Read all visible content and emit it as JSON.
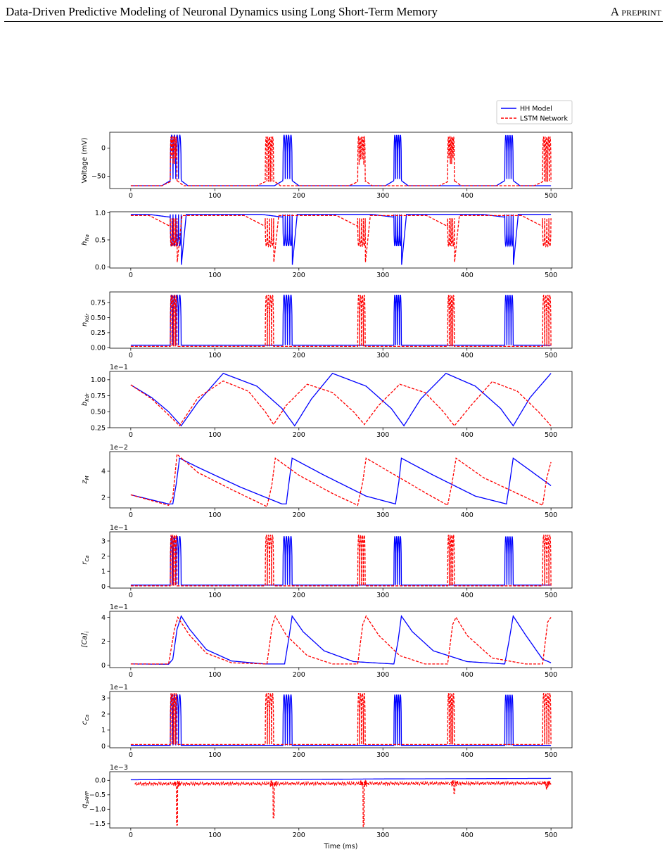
{
  "header": {
    "title": "Data-Driven Predictive Modeling of Neuronal Dynamics using Long Short-Term Memory",
    "tag": "A preprint"
  },
  "colors": {
    "hh": "#0000ff",
    "lstm": "#ff0000",
    "axis": "#000000"
  },
  "chart_data": {
    "type": "line",
    "legend": {
      "placement": "top-right",
      "entries": [
        {
          "name": "HH Model",
          "style": "solid",
          "color": "#0000ff"
        },
        {
          "name": "LSTM Network",
          "style": "dashed",
          "color": "#ff0000"
        }
      ]
    },
    "xlabel": "Time (ms)",
    "xlim": [
      -25,
      525
    ],
    "xticks": [
      0,
      100,
      200,
      300,
      400,
      500
    ],
    "grid": false,
    "panels": [
      {
        "id": "voltage",
        "ylabel": "Voltage (mV)",
        "sub": "",
        "offset": "",
        "ylim": [
          -72,
          28
        ],
        "yticks": [
          -50,
          0
        ],
        "yticklabels": [
          "−50",
          "0"
        ],
        "rest": -67,
        "profile": "voltage",
        "peak": 23,
        "hh": {
          "start": -67,
          "end": -67,
          "rise": [
            -67,
            -58
          ],
          "bursts": [
            [
              47,
              60
            ],
            [
              181,
              192
            ],
            [
              313,
              322
            ],
            [
              445,
              455
            ]
          ],
          "spike_top": 23,
          "spike_bottom": -55,
          "spikes": 4
        },
        "lstm": {
          "start": -67,
          "end": -67,
          "rise": [
            -67,
            -60
          ],
          "bursts": [
            [
              47,
              55
            ],
            [
              160,
              170
            ],
            [
              270,
              279
            ],
            [
              377,
              385
            ],
            [
              490,
              500
            ]
          ],
          "spike_top": 20,
          "spike_bottom": -60,
          "spikes": 5
        }
      },
      {
        "id": "h_na",
        "ylabel": "h",
        "sub": "Na",
        "offset": "",
        "ylim": [
          -0.02,
          1.02
        ],
        "yticks": [
          0,
          0.5,
          1.0
        ],
        "yticklabels": [
          "0.0",
          "0.5",
          "1.0"
        ],
        "profile": "inverse",
        "peak": 0.97,
        "hh": {
          "bursts": [
            [
              47,
              60
            ],
            [
              181,
              192
            ],
            [
              313,
              322
            ],
            [
              445,
              455
            ]
          ],
          "low": 0.0,
          "high": 0.97,
          "dip": 0.92
        },
        "lstm": {
          "bursts": [
            [
              47,
              55
            ],
            [
              160,
              170
            ],
            [
              270,
              279
            ],
            [
              377,
              385
            ],
            [
              490,
              500
            ]
          ],
          "low": 0.05,
          "high": 0.95,
          "dip": 0.75
        }
      },
      {
        "id": "n_kdr",
        "ylabel": "n",
        "sub": "Kdr",
        "offset": "",
        "ylim": [
          -0.01,
          0.93
        ],
        "yticks": [
          0,
          0.25,
          0.5,
          0.75
        ],
        "yticklabels": [
          "0.00",
          "0.25",
          "0.50",
          "0.75"
        ],
        "profile": "spike",
        "base": 0.04,
        "hh": {
          "bursts": [
            [
              47,
              60
            ],
            [
              181,
              192
            ],
            [
              313,
              322
            ],
            [
              445,
              455
            ]
          ],
          "top": 0.88,
          "base": 0.04
        },
        "lstm": {
          "bursts": [
            [
              47,
              55
            ],
            [
              160,
              170
            ],
            [
              270,
              279
            ],
            [
              377,
              385
            ],
            [
              490,
              500
            ]
          ],
          "top": 0.88,
          "base": 0.02
        }
      },
      {
        "id": "b_kdr",
        "ylabel": "b",
        "sub": "Kdr",
        "offset": "1e−1",
        "ylim": [
          0.25,
          1.13
        ],
        "yticks": [
          0.25,
          0.5,
          0.75,
          1.0
        ],
        "yticklabels": [
          "0.25",
          "0.50",
          "0.75",
          "1.00"
        ],
        "profile": "slow",
        "hh": {
          "points": [
            [
              0,
              0.92
            ],
            [
              25,
              0.72
            ],
            [
              45,
              0.5
            ],
            [
              60,
              0.28
            ],
            [
              80,
              0.65
            ],
            [
              110,
              1.1
            ],
            [
              150,
              0.9
            ],
            [
              180,
              0.55
            ],
            [
              195,
              0.28
            ],
            [
              215,
              0.7
            ],
            [
              240,
              1.1
            ],
            [
              280,
              0.9
            ],
            [
              310,
              0.55
            ],
            [
              325,
              0.28
            ],
            [
              345,
              0.7
            ],
            [
              375,
              1.1
            ],
            [
              410,
              0.9
            ],
            [
              440,
              0.55
            ],
            [
              455,
              0.28
            ],
            [
              475,
              0.72
            ],
            [
              500,
              1.1
            ]
          ]
        },
        "lstm": {
          "points": [
            [
              0,
              0.92
            ],
            [
              25,
              0.7
            ],
            [
              45,
              0.45
            ],
            [
              58,
              0.28
            ],
            [
              80,
              0.72
            ],
            [
              110,
              0.98
            ],
            [
              140,
              0.82
            ],
            [
              160,
              0.5
            ],
            [
              170,
              0.3
            ],
            [
              185,
              0.6
            ],
            [
              210,
              0.93
            ],
            [
              240,
              0.8
            ],
            [
              265,
              0.5
            ],
            [
              278,
              0.3
            ],
            [
              295,
              0.6
            ],
            [
              320,
              0.93
            ],
            [
              350,
              0.8
            ],
            [
              372,
              0.5
            ],
            [
              385,
              0.28
            ],
            [
              405,
              0.6
            ],
            [
              430,
              0.97
            ],
            [
              460,
              0.82
            ],
            [
              485,
              0.5
            ],
            [
              500,
              0.28
            ]
          ]
        }
      },
      {
        "id": "z_m",
        "ylabel": "z",
        "sub": "M",
        "offset": "1e−2",
        "ylim": [
          1.2,
          5.5
        ],
        "yticks": [
          2,
          4
        ],
        "yticklabels": [
          "2",
          "4"
        ],
        "profile": "slow",
        "hh": {
          "points": [
            [
              0,
              2.2
            ],
            [
              45,
              1.5
            ],
            [
              50,
              1.5
            ],
            [
              54,
              3.0
            ],
            [
              58,
              5.0
            ],
            [
              80,
              4.3
            ],
            [
              130,
              2.8
            ],
            [
              180,
              1.5
            ],
            [
              185,
              1.5
            ],
            [
              188,
              3.0
            ],
            [
              192,
              5.0
            ],
            [
              230,
              3.7
            ],
            [
              280,
              2.1
            ],
            [
              315,
              1.5
            ],
            [
              319,
              3.2
            ],
            [
              322,
              5.0
            ],
            [
              360,
              3.7
            ],
            [
              410,
              2.1
            ],
            [
              447,
              1.5
            ],
            [
              451,
              3.2
            ],
            [
              455,
              5.0
            ],
            [
              500,
              2.9
            ]
          ]
        },
        "lstm": {
          "points": [
            [
              0,
              2.2
            ],
            [
              45,
              1.4
            ],
            [
              50,
              2.0
            ],
            [
              55,
              5.3
            ],
            [
              80,
              3.9
            ],
            [
              120,
              2.6
            ],
            [
              162,
              1.3
            ],
            [
              168,
              3.0
            ],
            [
              172,
              5.0
            ],
            [
              200,
              3.7
            ],
            [
              240,
              2.3
            ],
            [
              270,
              1.4
            ],
            [
              276,
              3.2
            ],
            [
              280,
              5.0
            ],
            [
              320,
              3.5
            ],
            [
              352,
              2.3
            ],
            [
              377,
              1.4
            ],
            [
              382,
              3.0
            ],
            [
              387,
              5.0
            ],
            [
              420,
              3.5
            ],
            [
              460,
              2.3
            ],
            [
              490,
              1.4
            ],
            [
              495,
              3.5
            ],
            [
              500,
              4.7
            ]
          ]
        }
      },
      {
        "id": "r_ca",
        "ylabel": "r",
        "sub": "Ca",
        "offset": "1e−1",
        "ylim": [
          -0.1,
          3.6
        ],
        "yticks": [
          0,
          1,
          2,
          3
        ],
        "yticklabels": [
          "0",
          "1",
          "2",
          "3"
        ],
        "profile": "spike",
        "hh": {
          "bursts": [
            [
              47,
              60
            ],
            [
              181,
              192
            ],
            [
              313,
              322
            ],
            [
              445,
              455
            ]
          ],
          "top": 3.3,
          "base": 0.1
        },
        "lstm": {
          "bursts": [
            [
              47,
              55
            ],
            [
              160,
              170
            ],
            [
              270,
              279
            ],
            [
              377,
              385
            ],
            [
              490,
              500
            ]
          ],
          "top": 3.4,
          "base": 0.05
        }
      },
      {
        "id": "ca_i",
        "ylabel": "[Ca]",
        "sub": "i",
        "offset": "1e−1",
        "ylim": [
          -0.2,
          4.5
        ],
        "yticks": [
          0,
          2,
          4
        ],
        "yticklabels": [
          "0",
          "2",
          "4"
        ],
        "profile": "slow",
        "hh": {
          "points": [
            [
              0,
              0.1
            ],
            [
              45,
              0.08
            ],
            [
              50,
              0.5
            ],
            [
              55,
              3.0
            ],
            [
              60,
              4.1
            ],
            [
              70,
              3.0
            ],
            [
              90,
              1.3
            ],
            [
              120,
              0.35
            ],
            [
              160,
              0.1
            ],
            [
              183,
              0.1
            ],
            [
              188,
              2.2
            ],
            [
              192,
              4.1
            ],
            [
              205,
              2.8
            ],
            [
              230,
              1.2
            ],
            [
              265,
              0.3
            ],
            [
              313,
              0.1
            ],
            [
              318,
              2.0
            ],
            [
              322,
              4.1
            ],
            [
              335,
              2.8
            ],
            [
              360,
              1.2
            ],
            [
              400,
              0.3
            ],
            [
              445,
              0.1
            ],
            [
              450,
              2.0
            ],
            [
              455,
              4.1
            ],
            [
              470,
              2.5
            ],
            [
              490,
              0.5
            ],
            [
              500,
              0.2
            ]
          ]
        },
        "lstm": {
          "points": [
            [
              0,
              0.1
            ],
            [
              45,
              0.1
            ],
            [
              52,
              3.0
            ],
            [
              56,
              4.0
            ],
            [
              70,
              2.5
            ],
            [
              90,
              1.0
            ],
            [
              120,
              0.2
            ],
            [
              162,
              0.1
            ],
            [
              168,
              3.2
            ],
            [
              172,
              4.1
            ],
            [
              185,
              2.5
            ],
            [
              210,
              0.8
            ],
            [
              240,
              0.1
            ],
            [
              270,
              0.1
            ],
            [
              276,
              3.4
            ],
            [
              280,
              4.1
            ],
            [
              295,
              2.5
            ],
            [
              320,
              0.8
            ],
            [
              350,
              0.1
            ],
            [
              377,
              0.1
            ],
            [
              383,
              3.4
            ],
            [
              387,
              4.0
            ],
            [
              400,
              2.5
            ],
            [
              430,
              0.6
            ],
            [
              470,
              0.1
            ],
            [
              490,
              0.1
            ],
            [
              496,
              3.6
            ],
            [
              500,
              4.0
            ]
          ]
        }
      },
      {
        "id": "c_ca",
        "ylabel": "c",
        "sub": "Ca",
        "offset": "1e−1",
        "ylim": [
          -0.1,
          3.4
        ],
        "yticks": [
          0,
          1,
          2,
          3
        ],
        "yticklabels": [
          "0",
          "1",
          "2",
          "3"
        ],
        "profile": "spike",
        "hh": {
          "bursts": [
            [
              47,
              60
            ],
            [
              181,
              192
            ],
            [
              313,
              322
            ],
            [
              445,
              455
            ]
          ],
          "top": 3.2,
          "base": 0.05
        },
        "lstm": {
          "bursts": [
            [
              47,
              55
            ],
            [
              160,
              170
            ],
            [
              270,
              279
            ],
            [
              377,
              385
            ],
            [
              490,
              500
            ]
          ],
          "top": 3.3,
          "base": 0.1
        }
      },
      {
        "id": "q_sahp",
        "ylabel": "q",
        "sub": "sAHP",
        "offset": "1e−3",
        "ylim": [
          -1.65,
          0.3
        ],
        "yticks": [
          -1.5,
          -1.0,
          -0.5,
          0.0
        ],
        "yticklabels": [
          "−1.5",
          "−1.0",
          "−0.5",
          "0.0"
        ],
        "profile": "flat",
        "hh": {
          "points": [
            [
              0,
              0.02
            ],
            [
              100,
              0.03
            ],
            [
              200,
              0.03
            ],
            [
              300,
              0.05
            ],
            [
              400,
              0.06
            ],
            [
              500,
              0.07
            ]
          ]
        },
        "lstm": {
          "noise": [
            [
              5,
              -0.12
            ],
            [
              500,
              -0.1
            ]
          ],
          "dips": [
            [
              55,
              -1.55
            ],
            [
              170,
              -1.3
            ],
            [
              277,
              -1.6
            ],
            [
              385,
              -0.45
            ],
            [
              495,
              -0.3
            ]
          ]
        }
      }
    ]
  }
}
